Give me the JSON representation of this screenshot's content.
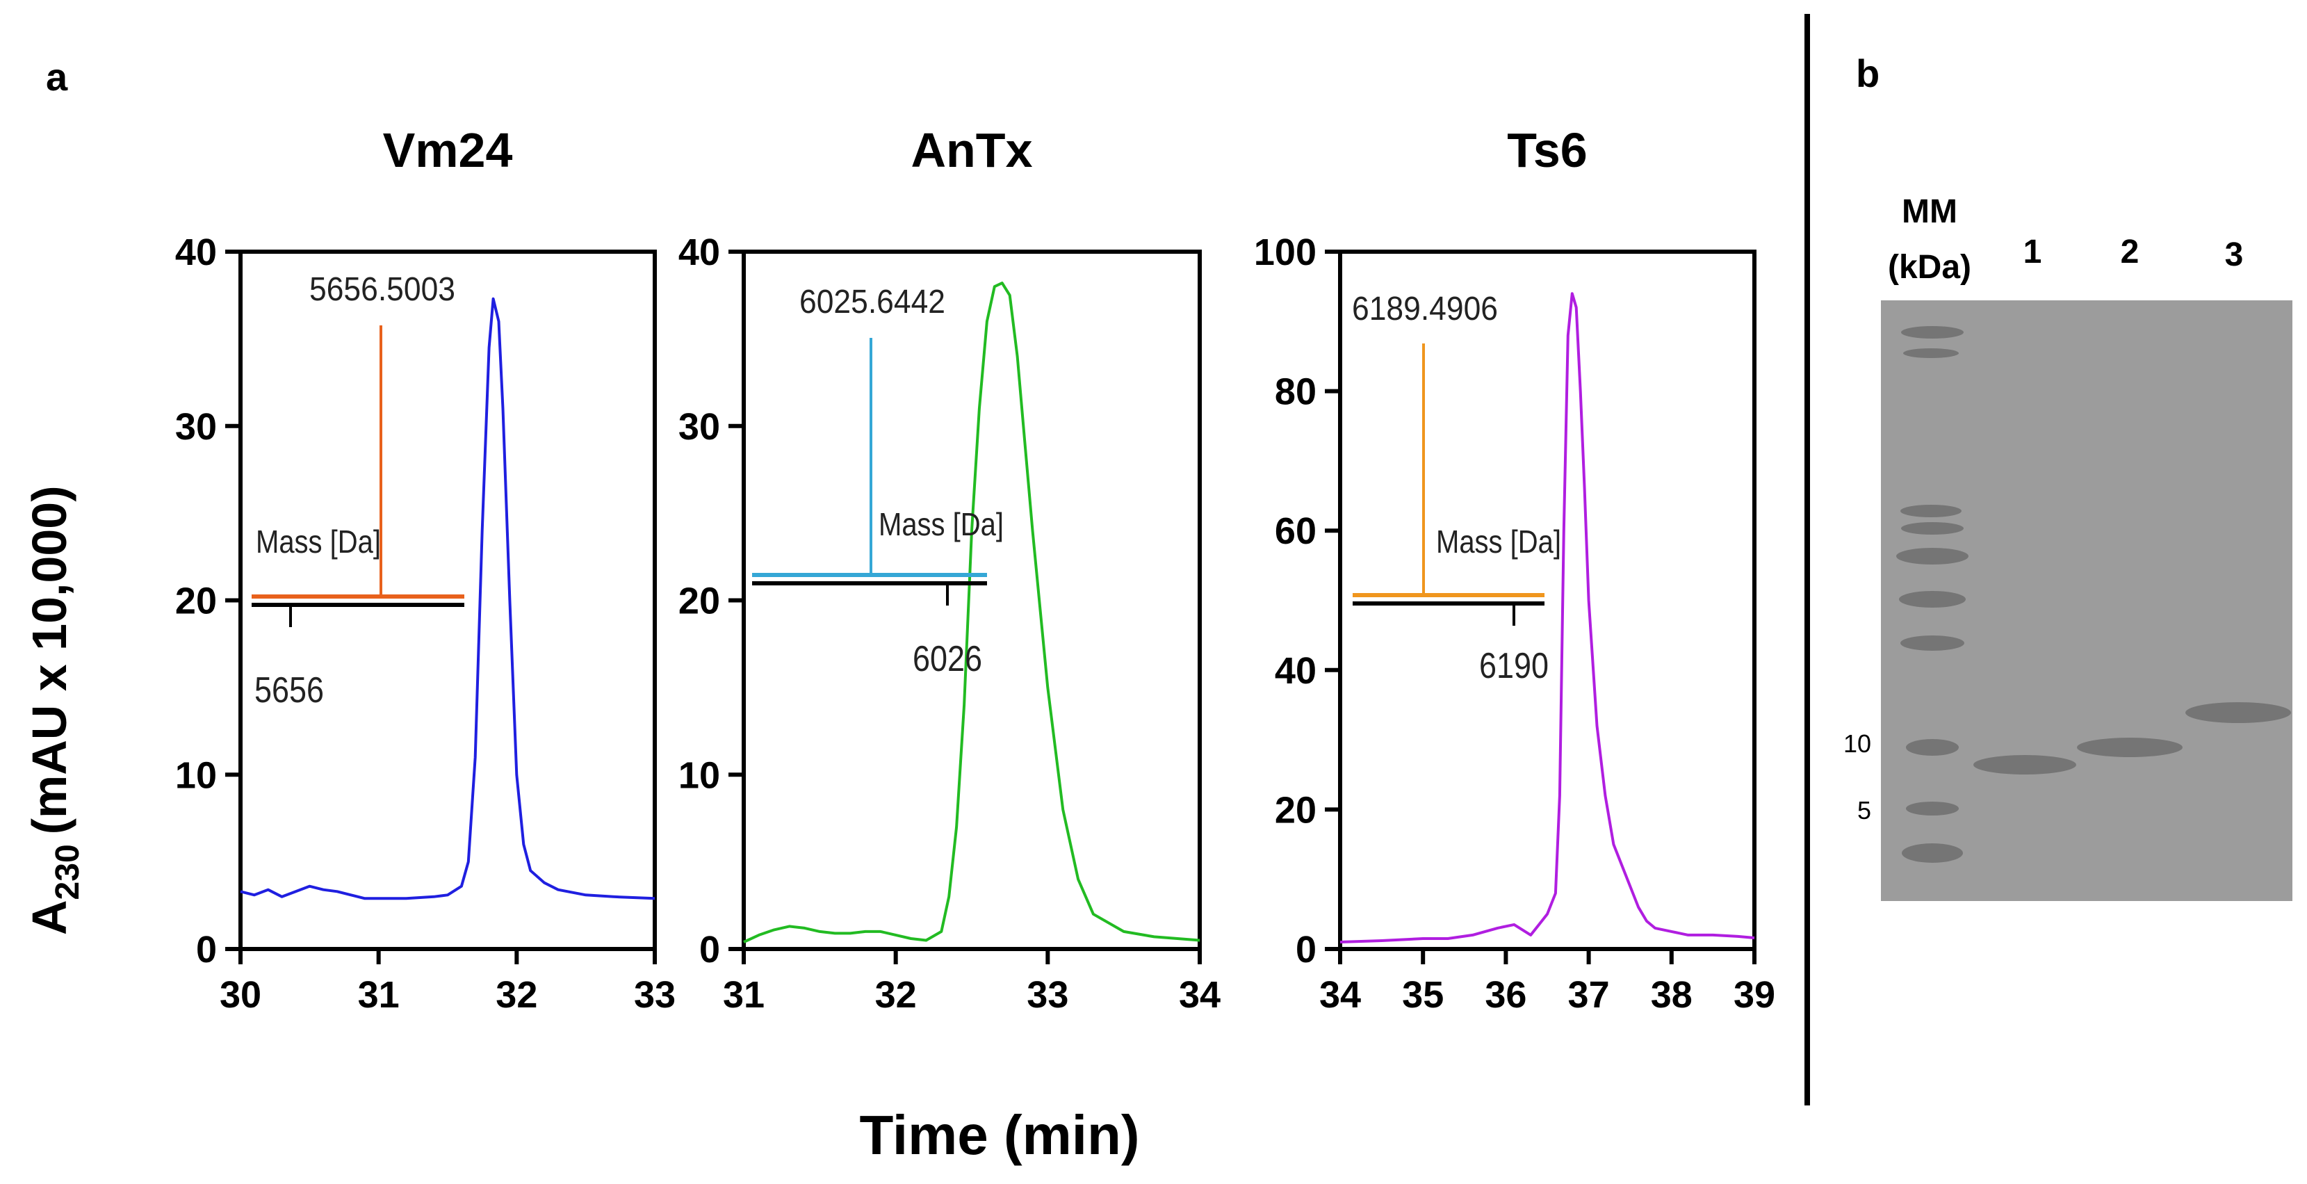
{
  "panel_labels": {
    "a": "a",
    "b": "b"
  },
  "y_label_main": "A",
  "y_label_sub": "230",
  "y_label_tail": "(mAU x 10,000)",
  "x_label": "Time (min)",
  "chart_data": [
    {
      "type": "line",
      "title": "Vm24",
      "xlabel": "Time (min)",
      "ylabel": "A230 (mAU x 10,000)",
      "xlim": [
        30,
        33
      ],
      "ylim": [
        0,
        40
      ],
      "xticks": [
        30,
        31,
        32,
        33
      ],
      "yticks": [
        0,
        10,
        20,
        30,
        40
      ],
      "color": "#1f1fe0",
      "x": [
        30.0,
        30.1,
        30.2,
        30.3,
        30.4,
        30.5,
        30.6,
        30.7,
        30.8,
        30.9,
        31.0,
        31.2,
        31.4,
        31.5,
        31.6,
        31.65,
        31.7,
        31.75,
        31.8,
        31.83,
        31.87,
        31.9,
        31.95,
        32.0,
        32.05,
        32.1,
        32.2,
        32.3,
        32.5,
        32.7,
        33.0
      ],
      "y": [
        3.3,
        3.1,
        3.4,
        3.0,
        3.3,
        3.6,
        3.4,
        3.3,
        3.1,
        2.9,
        2.9,
        2.9,
        3.0,
        3.1,
        3.6,
        5.0,
        11.0,
        24.0,
        34.5,
        37.3,
        36.0,
        31.0,
        20.0,
        10.0,
        6.0,
        4.5,
        3.8,
        3.4,
        3.1,
        3.0,
        2.9
      ],
      "inset": {
        "label": "Mass [Da]",
        "peak_label": "5656.5003",
        "tick_label": "5656",
        "color": "#e8611c"
      }
    },
    {
      "type": "line",
      "title": "AnTx",
      "xlabel": "Time (min)",
      "ylabel": "A230 (mAU x 10,000)",
      "xlim": [
        31,
        34
      ],
      "ylim": [
        0,
        40
      ],
      "xticks": [
        31,
        32,
        33,
        34
      ],
      "yticks": [
        0,
        10,
        20,
        30,
        40
      ],
      "color": "#22bb22",
      "x": [
        31.0,
        31.1,
        31.2,
        31.3,
        31.4,
        31.5,
        31.6,
        31.7,
        31.8,
        31.9,
        32.0,
        32.1,
        32.2,
        32.3,
        32.35,
        32.4,
        32.45,
        32.5,
        32.55,
        32.6,
        32.65,
        32.7,
        32.75,
        32.8,
        32.85,
        32.9,
        33.0,
        33.1,
        33.2,
        33.3,
        33.5,
        33.7,
        34.0
      ],
      "y": [
        0.4,
        0.8,
        1.1,
        1.3,
        1.2,
        1.0,
        0.9,
        0.9,
        1.0,
        1.0,
        0.8,
        0.6,
        0.5,
        1.0,
        3.0,
        7.0,
        14.0,
        24.0,
        31.0,
        36.0,
        38.0,
        38.2,
        37.5,
        34.0,
        29.0,
        24.0,
        15.0,
        8.0,
        4.0,
        2.0,
        1.0,
        0.7,
        0.5
      ],
      "inset": {
        "label": "Mass [Da]",
        "peak_label": "6025.6442",
        "tick_label": "6026",
        "color": "#35a7d6"
      }
    },
    {
      "type": "line",
      "title": "Ts6",
      "xlabel": "Time (min)",
      "ylabel": "A230 (mAU x 10,000)",
      "xlim": [
        34,
        39
      ],
      "ylim": [
        0,
        100
      ],
      "xticks": [
        34,
        35,
        36,
        37,
        38,
        39
      ],
      "yticks": [
        0,
        20,
        40,
        60,
        80,
        100
      ],
      "color": "#b01ee0",
      "x": [
        34.0,
        34.5,
        35.0,
        35.3,
        35.6,
        35.9,
        36.1,
        36.3,
        36.4,
        36.5,
        36.6,
        36.65,
        36.7,
        36.75,
        36.8,
        36.85,
        36.9,
        36.95,
        37.0,
        37.1,
        37.2,
        37.3,
        37.4,
        37.5,
        37.6,
        37.7,
        37.8,
        38.0,
        38.2,
        38.5,
        38.8,
        39.0
      ],
      "y": [
        1.0,
        1.2,
        1.5,
        1.5,
        2.0,
        3.0,
        3.5,
        2.0,
        3.5,
        5.0,
        8.0,
        22.0,
        60.0,
        88.0,
        94.0,
        92.0,
        80.0,
        66.0,
        50.0,
        32.0,
        22.0,
        15.0,
        12.0,
        9.0,
        6.0,
        4.0,
        3.0,
        2.5,
        2.0,
        2.0,
        1.8,
        1.6
      ],
      "inset": {
        "label": "Mass [Da]",
        "peak_label": "6189.4906",
        "tick_label": "6190",
        "color": "#f0961e"
      }
    }
  ],
  "gel": {
    "header_mm": "MM",
    "header_kda": "(kDa)",
    "lane_labels": [
      "1",
      "2",
      "3"
    ],
    "marker_labels": [
      "10",
      "5"
    ],
    "background_color": "#9c9c9c",
    "band_color": "#555555"
  }
}
